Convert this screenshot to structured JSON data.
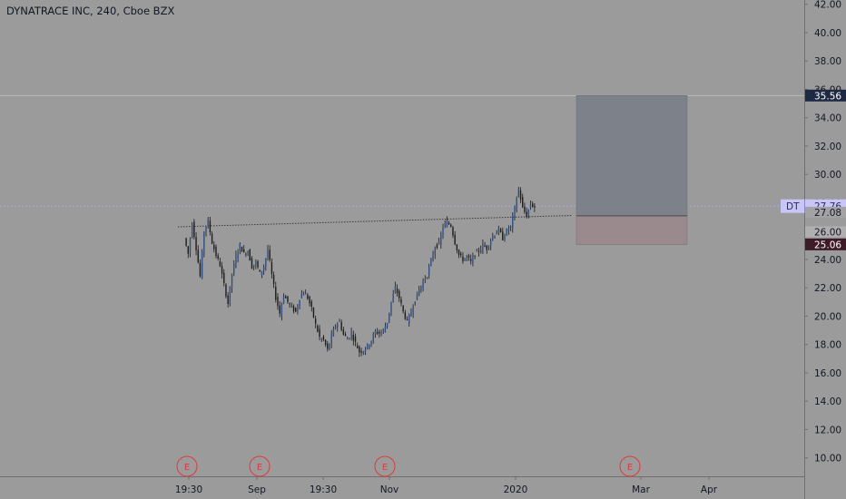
{
  "header": {
    "title": "DYNATRACE INC, 240, Cboe BZX"
  },
  "chart_data": {
    "type": "candlestick",
    "symbol": "DT",
    "interval": "240",
    "exchange": "Cboe BZX",
    "y_ticks": [
      "10.00",
      "12.00",
      "14.00",
      "16.00",
      "18.00",
      "20.00",
      "22.00",
      "24.00",
      "26.00",
      "28.00",
      "30.00",
      "32.00",
      "34.00",
      "36.00",
      "38.00",
      "40.00",
      "42.00"
    ],
    "x_ticks": [
      "19:30",
      "Sep",
      "19:30",
      "Nov",
      "2020",
      "Mar",
      "Apr"
    ],
    "ylim": [
      8.7,
      42.3
    ],
    "price_tags": {
      "target": "35.56",
      "last_label": "DT",
      "last": "27.76",
      "entry": "27.08",
      "level": "26.00",
      "stop": "25.06"
    },
    "position": {
      "target": 35.56,
      "entry": 27.08,
      "stop": 25.06
    },
    "trendline": {
      "from": 26.3,
      "to": 27.1
    },
    "earnings_markers": [
      "E",
      "E",
      "E",
      "E"
    ],
    "price_path_approx": [
      [
        0,
        25.5
      ],
      [
        1,
        24.4
      ],
      [
        2,
        26.6
      ],
      [
        3,
        24.8
      ],
      [
        4,
        22.8
      ],
      [
        5,
        26.0
      ],
      [
        6,
        26.7
      ],
      [
        7,
        25.2
      ],
      [
        8,
        24.3
      ],
      [
        9,
        23.6
      ],
      [
        10,
        22.2
      ],
      [
        11,
        20.9
      ],
      [
        12,
        23.0
      ],
      [
        13,
        24.2
      ],
      [
        14,
        25.0
      ],
      [
        15,
        24.4
      ],
      [
        16,
        24.6
      ],
      [
        17,
        23.5
      ],
      [
        18,
        23.8
      ],
      [
        19,
        23.0
      ],
      [
        20,
        23.5
      ],
      [
        21,
        24.7
      ],
      [
        22,
        22.9
      ],
      [
        23,
        21.3
      ],
      [
        24,
        20.2
      ],
      [
        25,
        21.5
      ],
      [
        26,
        21.0
      ],
      [
        27,
        20.6
      ],
      [
        28,
        20.3
      ],
      [
        29,
        21.3
      ],
      [
        30,
        21.7
      ],
      [
        31,
        21.3
      ],
      [
        32,
        20.5
      ],
      [
        33,
        19.4
      ],
      [
        34,
        18.5
      ],
      [
        35,
        18.3
      ],
      [
        36,
        17.6
      ],
      [
        37,
        18.6
      ],
      [
        38,
        19.4
      ],
      [
        39,
        19.6
      ],
      [
        40,
        18.7
      ],
      [
        41,
        18.4
      ],
      [
        42,
        18.8
      ],
      [
        43,
        18.1
      ],
      [
        44,
        17.5
      ],
      [
        45,
        17.6
      ],
      [
        46,
        17.9
      ],
      [
        47,
        18.3
      ],
      [
        48,
        18.9
      ],
      [
        49,
        18.8
      ],
      [
        50,
        19.0
      ],
      [
        51,
        19.6
      ],
      [
        52,
        21.0
      ],
      [
        53,
        22.0
      ],
      [
        54,
        21.3
      ],
      [
        55,
        20.3
      ],
      [
        56,
        19.6
      ],
      [
        57,
        20.3
      ],
      [
        58,
        21.2
      ],
      [
        59,
        21.9
      ],
      [
        60,
        22.4
      ],
      [
        61,
        22.9
      ],
      [
        62,
        23.9
      ],
      [
        63,
        24.9
      ],
      [
        64,
        25.1
      ],
      [
        65,
        26.3
      ],
      [
        66,
        26.6
      ],
      [
        67,
        26.4
      ],
      [
        68,
        25.2
      ],
      [
        69,
        24.3
      ],
      [
        70,
        24.0
      ],
      [
        71,
        24.2
      ],
      [
        72,
        23.8
      ],
      [
        73,
        24.4
      ],
      [
        74,
        24.6
      ],
      [
        75,
        25.0
      ],
      [
        76,
        24.8
      ],
      [
        77,
        25.4
      ],
      [
        78,
        25.8
      ],
      [
        79,
        26.1
      ],
      [
        80,
        25.5
      ],
      [
        81,
        26.0
      ],
      [
        82,
        26.3
      ],
      [
        83,
        27.6
      ],
      [
        84,
        29.0
      ],
      [
        85,
        27.6
      ],
      [
        86,
        27.1
      ],
      [
        87,
        27.9
      ],
      [
        88,
        27.7
      ]
    ]
  }
}
